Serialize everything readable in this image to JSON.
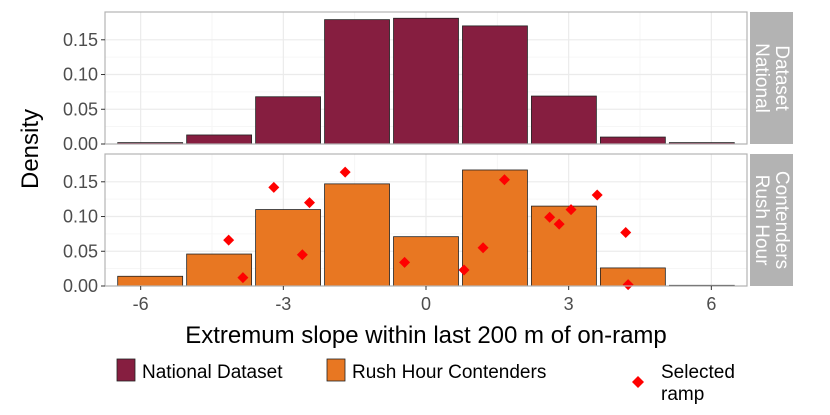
{
  "chart_data": {
    "type": "bar",
    "xlabel": "Extremum slope within last 200 m of on-ramp",
    "ylabel": "Density",
    "xlim": [
      -6.75,
      6.75
    ],
    "ylim": [
      0,
      0.19
    ],
    "x_ticks": [
      -6,
      -3,
      0,
      3,
      6
    ],
    "x_tick_labels": [
      "-6",
      "-3",
      "0",
      "3",
      "6"
    ],
    "y_ticks": [
      0,
      0.05,
      0.1,
      0.15
    ],
    "y_tick_labels": [
      "0.00",
      "0.05",
      "0.10",
      "0.15"
    ],
    "bin_width": 1.45,
    "bin_centers": [
      -5.8,
      -4.35,
      -2.9,
      -1.45,
      0,
      1.45,
      2.9,
      4.35,
      5.8
    ],
    "grid": true,
    "legend_position": "bottom",
    "panels": [
      {
        "strip_label": [
          "National",
          "Dataset"
        ],
        "series": "National Dataset",
        "values": [
          0.002,
          0.013,
          0.068,
          0.179,
          0.181,
          0.17,
          0.069,
          0.01,
          0.002
        ],
        "points": []
      },
      {
        "strip_label": [
          "Rush Hour",
          "Contenders"
        ],
        "series": "Rush Hour Contenders",
        "values": [
          0.014,
          0.046,
          0.11,
          0.147,
          0.071,
          0.167,
          0.115,
          0.026,
          0.001
        ],
        "points": [
          {
            "x": -4.15,
            "y": 0.066
          },
          {
            "x": -3.85,
            "y": 0.012
          },
          {
            "x": -3.2,
            "y": 0.142
          },
          {
            "x": -2.6,
            "y": 0.045
          },
          {
            "x": -2.45,
            "y": 0.12
          },
          {
            "x": -1.7,
            "y": 0.164
          },
          {
            "x": -0.45,
            "y": 0.034
          },
          {
            "x": 0.8,
            "y": 0.023
          },
          {
            "x": 1.2,
            "y": 0.055
          },
          {
            "x": 1.65,
            "y": 0.153
          },
          {
            "x": 2.6,
            "y": 0.099
          },
          {
            "x": 2.8,
            "y": 0.089
          },
          {
            "x": 3.05,
            "y": 0.11
          },
          {
            "x": 3.6,
            "y": 0.131
          },
          {
            "x": 4.2,
            "y": 0.077
          },
          {
            "x": 4.25,
            "y": 0.002
          }
        ]
      }
    ],
    "legend": [
      {
        "label": "National Dataset",
        "kind": "bar",
        "color": "#861e40"
      },
      {
        "label": "Rush Hour Contenders",
        "kind": "bar",
        "color": "#e87722"
      },
      {
        "label": [
          "Selected",
          "ramp"
        ],
        "kind": "point",
        "color": "#ff0000"
      }
    ],
    "colors": {
      "national": "#861e40",
      "rush": "#e87722",
      "point": "#ff0000",
      "strip": "#b3b3b3",
      "grid": "#ebebeb",
      "border": "#b3b3b3"
    }
  }
}
